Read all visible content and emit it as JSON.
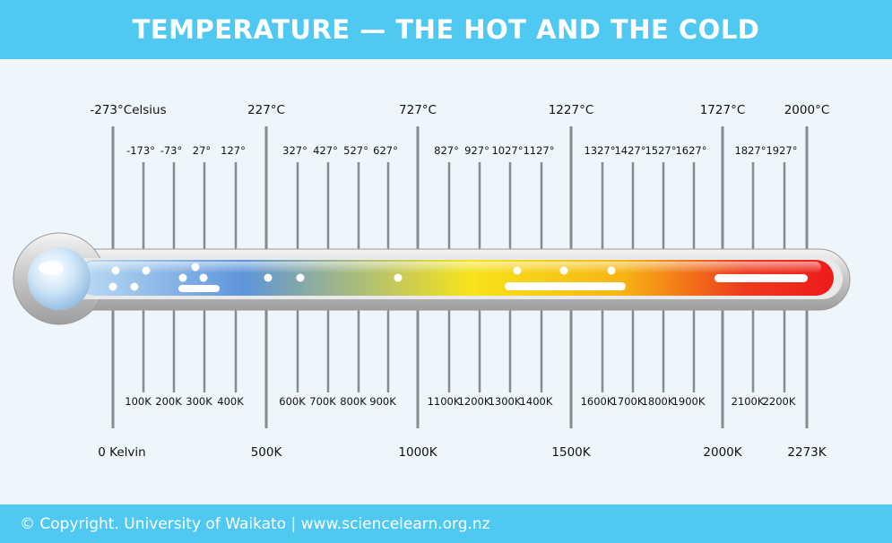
{
  "header": {
    "title": "TEMPERATURE — THE HOT AND THE COLD"
  },
  "footer": {
    "copyright": "© Copyright. University of Waikato | www.sciencelearn.org.nz"
  },
  "colors": {
    "banner": "#4fc9f2",
    "background": "#eef5fb",
    "line": "#8a8a8a",
    "gradient": [
      "#a8d2f2",
      "#5d95da",
      "#f7e31b",
      "#f7b514",
      "#ee3b1c",
      "#ee1a1a"
    ]
  },
  "major_ticks": [
    {
      "celsius": "-273°Celsius",
      "kelvin": "0 Kelvin"
    },
    {
      "celsius": "227°C",
      "kelvin": "500K"
    },
    {
      "celsius": "727°C",
      "kelvin": "1000K"
    },
    {
      "celsius": "1227°C",
      "kelvin": "1500K"
    },
    {
      "celsius": "1727°C",
      "kelvin": "2000K"
    },
    {
      "celsius": "2000°C",
      "kelvin": "2273K"
    }
  ],
  "minor_ticks": [
    {
      "celsius": "-173°",
      "kelvin": "100K"
    },
    {
      "celsius": "-73°",
      "kelvin": "200K"
    },
    {
      "celsius": "27°",
      "kelvin": "300K"
    },
    {
      "celsius": "127°",
      "kelvin": "400K"
    },
    {
      "celsius": "327°",
      "kelvin": "600K"
    },
    {
      "celsius": "427°",
      "kelvin": "700K"
    },
    {
      "celsius": "527°",
      "kelvin": "800K"
    },
    {
      "celsius": "627°",
      "kelvin": "900K"
    },
    {
      "celsius": "827°",
      "kelvin": "1100K"
    },
    {
      "celsius": "927°",
      "kelvin": "1200K"
    },
    {
      "celsius": "1027°",
      "kelvin": "1300K"
    },
    {
      "celsius": "1127°",
      "kelvin": "1400K"
    },
    {
      "celsius": "1327°",
      "kelvin": "1600K"
    },
    {
      "celsius": "1427°",
      "kelvin": "1700K"
    },
    {
      "celsius": "1527°",
      "kelvin": "1800K"
    },
    {
      "celsius": "1627°",
      "kelvin": "1900K"
    },
    {
      "celsius": "1827°",
      "kelvin": "2100K"
    },
    {
      "celsius": "1927°",
      "kelvin": "2200K"
    }
  ]
}
